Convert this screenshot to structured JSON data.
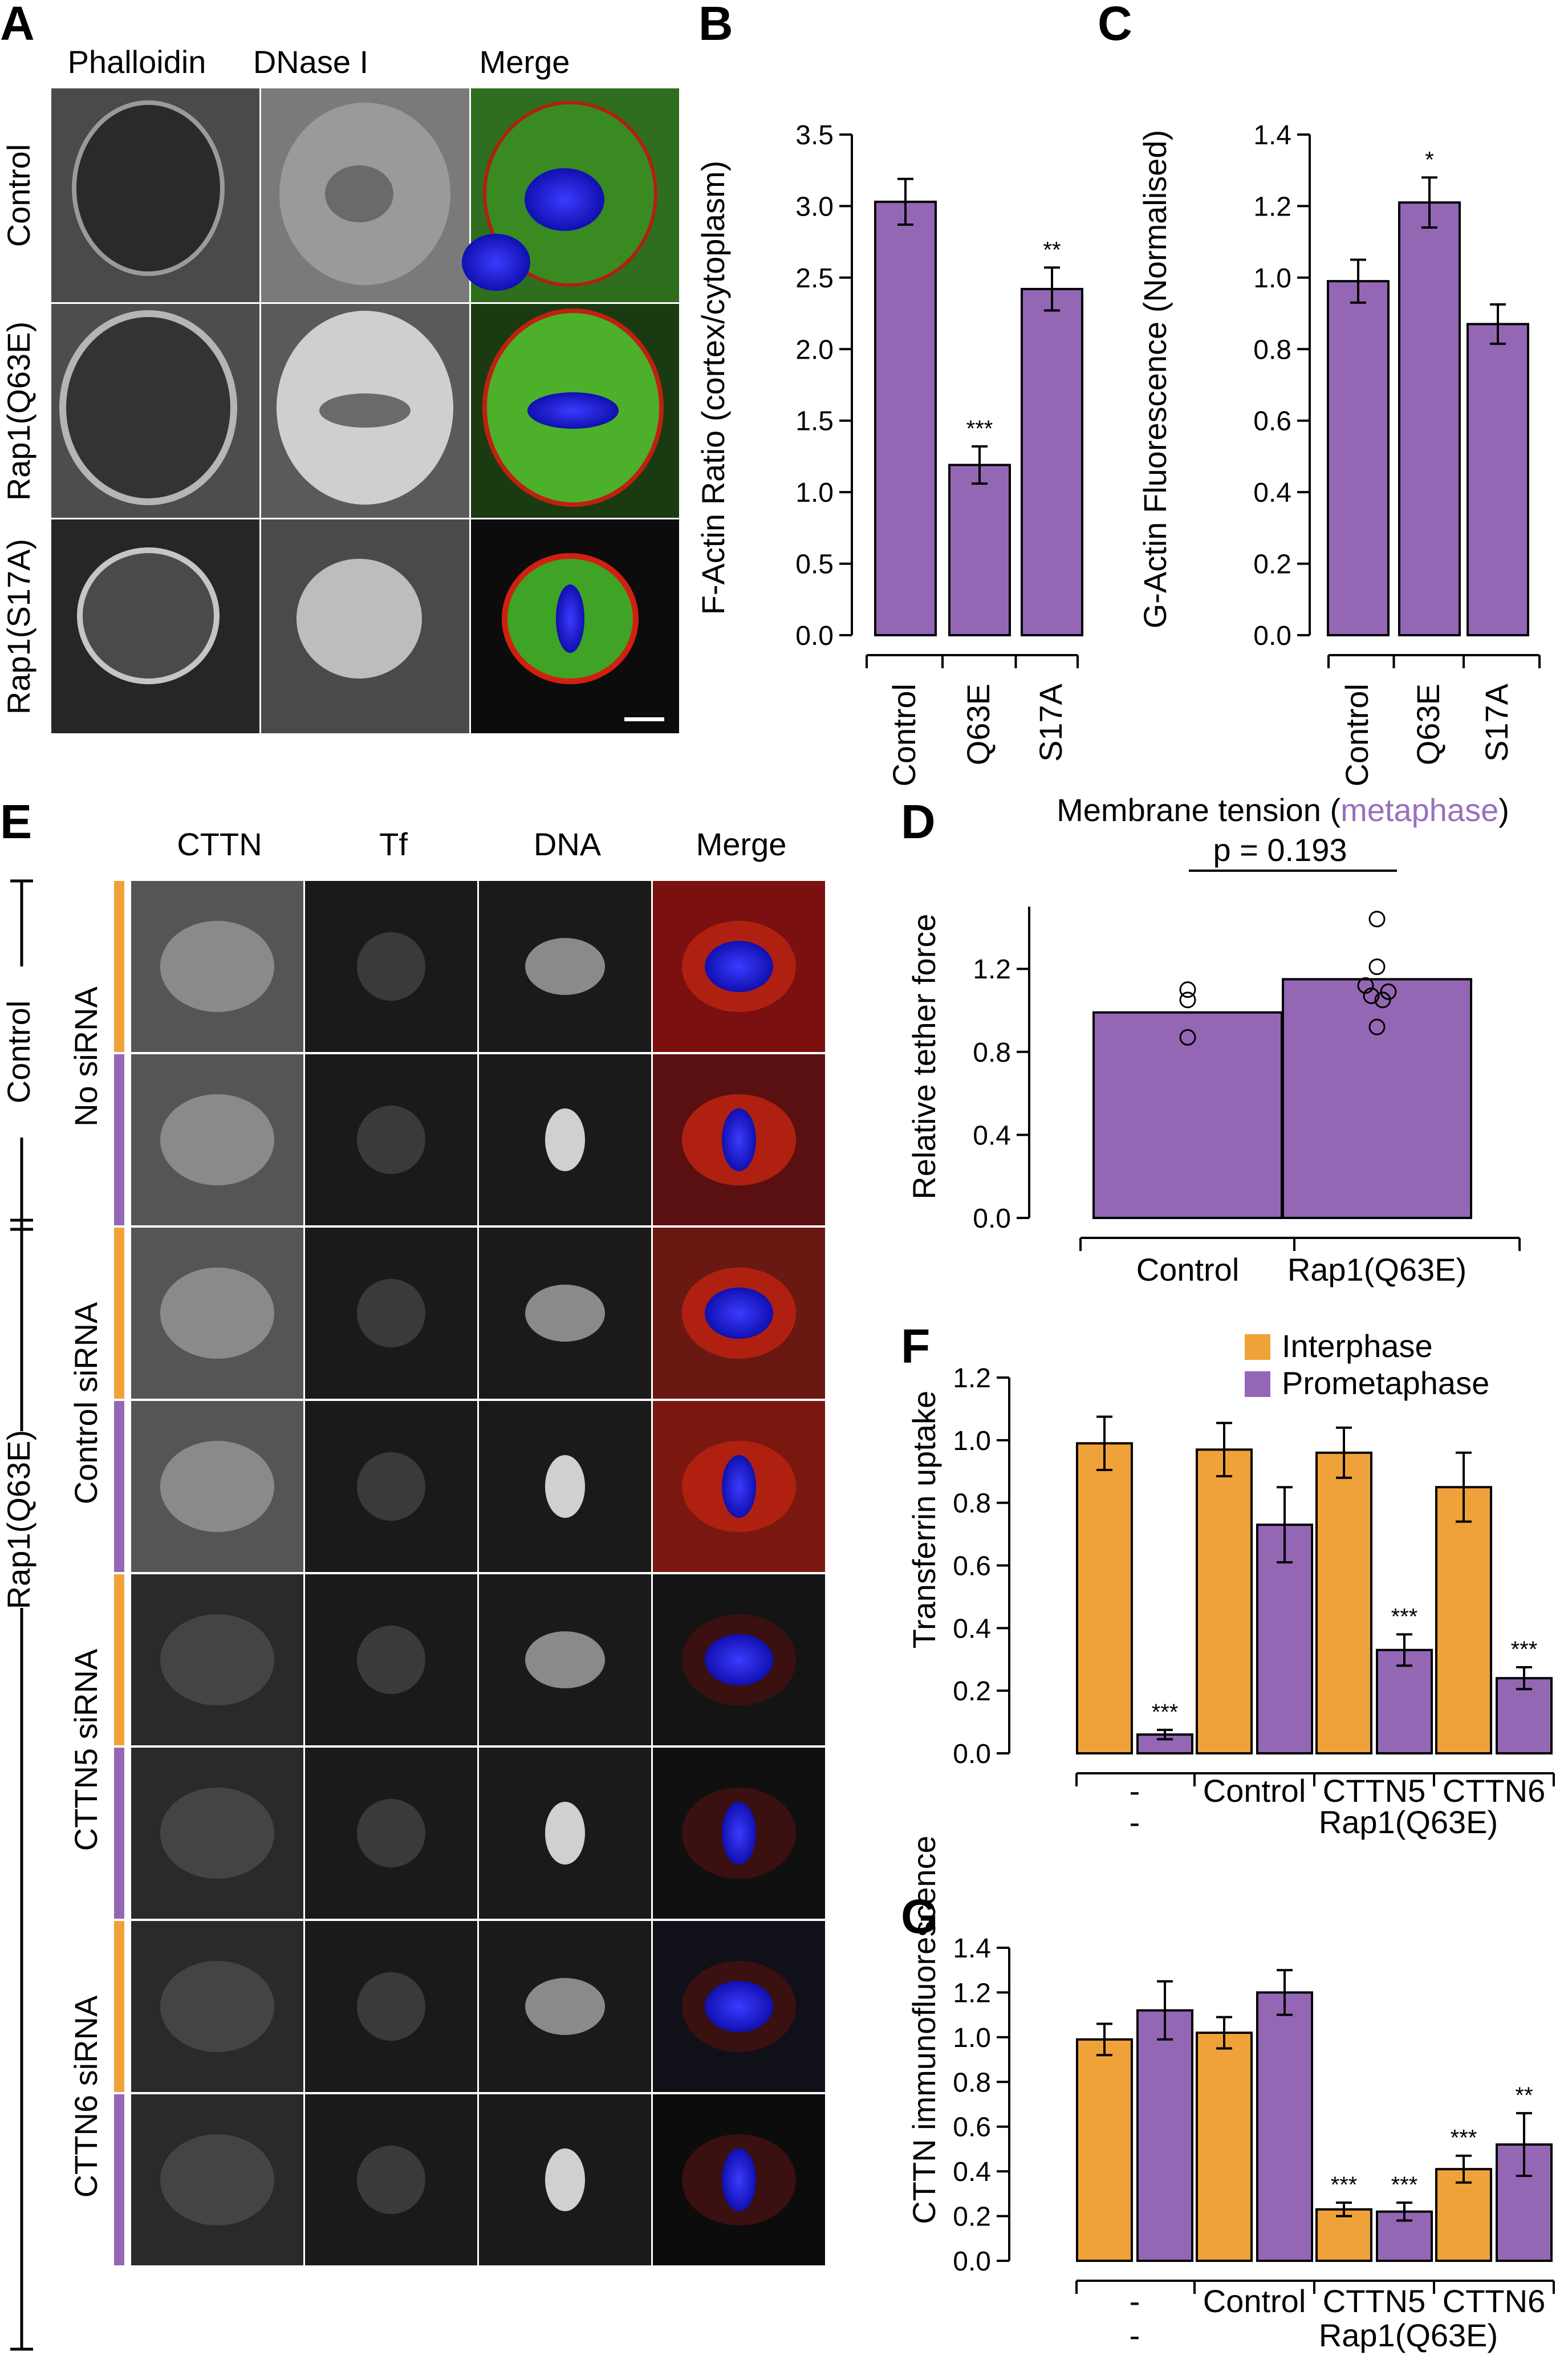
{
  "colors": {
    "purple": "#9467b4",
    "orange": "#f0a23a",
    "red": "#e8191c",
    "green": "#8fe33b",
    "blue": "#1a1adc",
    "metaphase": "#9a6ec0"
  },
  "panel_A": {
    "letter": "A",
    "columns": [
      {
        "label": "Phalloidin",
        "color": "#e8191c"
      },
      {
        "label": "DNase I",
        "color": "#8fe33b"
      },
      {
        "label": "Merge",
        "color": "#000000"
      }
    ],
    "rows": [
      "Control",
      "Rap1(Q63E)",
      "Rap1(S17A)"
    ]
  },
  "panel_E": {
    "letter": "E",
    "columns": [
      {
        "label": "CTTN",
        "color": "#e8191c"
      },
      {
        "label": "Tf",
        "color": "#8fe33b"
      },
      {
        "label": "DNA",
        "color": "#1a1adc"
      },
      {
        "label": "Merge",
        "color": "#000000"
      }
    ],
    "group_labels": [
      "Control",
      "Rap1(Q63E)"
    ],
    "row_labels": [
      "No siRNA",
      "Control siRNA",
      "CTTN5 siRNA",
      "CTTN6 siRNA"
    ]
  },
  "chart_data": [
    {
      "panel": "B",
      "type": "bar",
      "categories": [
        "Control",
        "Q63E",
        "S17A"
      ],
      "values": [
        3.03,
        1.19,
        2.42
      ],
      "errors": [
        0.16,
        0.13,
        0.15
      ],
      "significance": [
        "",
        "***",
        "**"
      ],
      "ylabel": "F-Actin Ratio (cortex/cytoplasm)",
      "ylim": [
        0,
        3.5
      ],
      "yticks": [
        "0.0",
        "0.5",
        "1.0",
        "1.5",
        "2.0",
        "2.5",
        "3.0",
        "3.5"
      ]
    },
    {
      "panel": "C",
      "type": "bar",
      "categories": [
        "Control",
        "Q63E",
        "S17A"
      ],
      "values": [
        0.99,
        1.21,
        0.87
      ],
      "errors": [
        0.06,
        0.07,
        0.055
      ],
      "significance": [
        "",
        "*",
        ""
      ],
      "ylabel": "G-Actin Fluorescence (Normalised)",
      "ylim": [
        0,
        1.4
      ],
      "yticks": [
        "0.0",
        "0.2",
        "0.4",
        "0.6",
        "0.8",
        "1.0",
        "1.2",
        "1.4"
      ]
    },
    {
      "panel": "D",
      "type": "bar",
      "title_prefix": "Membrane tension (",
      "title_highlight": "metaphase",
      "title_suffix": ")",
      "categories": [
        "Control",
        "Rap1(Q63E)"
      ],
      "values": [
        0.99,
        1.15
      ],
      "points": [
        [
          0.87,
          1.05,
          1.1
        ],
        [
          0.92,
          1.05,
          1.07,
          1.09,
          1.12,
          1.21,
          1.44
        ]
      ],
      "pvalue": "p = 0.193",
      "ylabel": "Relative tether force",
      "ylim": [
        0,
        1.5
      ],
      "yticks": [
        "0.0",
        "0.4",
        "0.8",
        "1.2"
      ]
    },
    {
      "panel": "F",
      "type": "bar",
      "legend": [
        "Interphase",
        "Prometaphase"
      ],
      "legend_position": "top-right",
      "groups": [
        "-",
        "Control",
        "CTTN5",
        "CTTN6"
      ],
      "second_row": [
        "-",
        "Rap1(Q63E)"
      ],
      "series": [
        {
          "name": "Interphase",
          "values": [
            0.99,
            0.97,
            0.96,
            0.85
          ],
          "errors": [
            0.085,
            0.085,
            0.08,
            0.11
          ],
          "significance": [
            "",
            "",
            "",
            ""
          ]
        },
        {
          "name": "Prometaphase",
          "values": [
            0.06,
            0.73,
            0.33,
            0.24
          ],
          "errors": [
            0.015,
            0.12,
            0.05,
            0.035
          ],
          "significance": [
            "***",
            "",
            "***",
            "***"
          ]
        }
      ],
      "ylabel": "Transferrin uptake",
      "ylim": [
        0,
        1.2
      ],
      "yticks": [
        "0.0",
        "0.2",
        "0.4",
        "0.6",
        "0.8",
        "1.0",
        "1.2"
      ]
    },
    {
      "panel": "G",
      "type": "bar",
      "groups": [
        "-",
        "Control",
        "CTTN5",
        "CTTN6"
      ],
      "second_row": [
        "-",
        "Rap1(Q63E)"
      ],
      "series": [
        {
          "name": "Interphase",
          "values": [
            0.99,
            1.02,
            0.23,
            0.41
          ],
          "errors": [
            0.07,
            0.07,
            0.03,
            0.06
          ],
          "significance": [
            "",
            "",
            "***",
            "***"
          ]
        },
        {
          "name": "Prometaphase",
          "values": [
            1.12,
            1.2,
            0.22,
            0.52
          ],
          "errors": [
            0.13,
            0.1,
            0.04,
            0.14
          ],
          "significance": [
            "",
            "",
            "***",
            "**"
          ]
        }
      ],
      "ylabel": "CTTN immunofluorescence",
      "ylim": [
        0,
        1.4
      ],
      "yticks": [
        "0.0",
        "0.2",
        "0.4",
        "0.6",
        "0.8",
        "1.0",
        "1.2",
        "1.4"
      ]
    }
  ]
}
